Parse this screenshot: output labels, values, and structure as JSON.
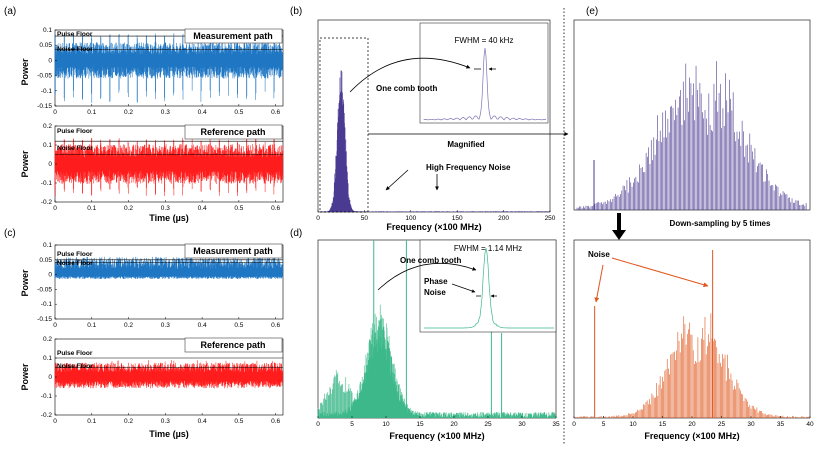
{
  "colors": {
    "blue": "#1f77c4",
    "red": "#ff1c1c",
    "purple": "#4b3a91",
    "green": "#3cb88a",
    "orange": "#e0561c"
  },
  "panels": {
    "a": {
      "label": "(a)",
      "measurement_label": "Measurement path",
      "reference_label": "Reference path",
      "pulse_floor": "Pulse Floor",
      "noise_floor": "Noise Floor",
      "ylabel": "Power",
      "xlabel": "Time (µs)"
    },
    "c": {
      "label": "(c)",
      "measurement_label": "Measurement path",
      "reference_label": "Reference path",
      "pulse_floor": "Pulse Floor",
      "noise_floor": "Noise Floor",
      "ylabel": "Power",
      "xlabel": "Time (µs)"
    },
    "b": {
      "label": "(b)",
      "xlabel": "Frequency (×100 MHz)",
      "ylabel": "",
      "fwhm": "FWHM = 40 kHz",
      "one_comb_tooth": "One comb tooth",
      "magnified": "Magnified",
      "high_freq_noise": "High Frequency Noise"
    },
    "d": {
      "label": "(d)",
      "xlabel": "Frequency (×100 MHz)",
      "fwhm": "FWHM = 1.14 MHz",
      "one_comb_tooth": "One comb tooth",
      "phase_noise_1": "Phase",
      "phase_noise_2": "Noise"
    },
    "e": {
      "label": "(e)",
      "downsampling": "Down-sampling by 5 times",
      "noise": "Noise",
      "xlabel": "Frequency (×100 MHz)"
    }
  },
  "chart_data": [
    {
      "id": "a-measurement",
      "type": "line",
      "series_name": "Measurement path",
      "xlabel": "Time (µs)",
      "ylabel": "Power",
      "xlim": [
        0,
        0.62
      ],
      "ylim": [
        -0.15,
        0.1
      ],
      "xticks": [
        0,
        0.1,
        0.2,
        0.3,
        0.4,
        0.5,
        0.6
      ],
      "yticks": [
        -0.15,
        -0.1,
        -0.05,
        0,
        0.05,
        0.1
      ],
      "xtick_labels": [
        "0",
        "0.1",
        "0.2",
        "0.3",
        "0.4",
        "0.5",
        "0.6"
      ],
      "ytick_labels": [
        "-0.15",
        "-0.1",
        "-0.05",
        "0",
        "0.05",
        "0.1"
      ],
      "pulse_floor": 0.08,
      "noise_floor": 0.035,
      "pulse_count": 25,
      "noise_band": [
        -0.04,
        0.04
      ],
      "pulse_range": [
        -0.14,
        0.09
      ]
    },
    {
      "id": "a-reference",
      "type": "line",
      "series_name": "Reference path",
      "xlabel": "Time (µs)",
      "ylabel": "Power",
      "xlim": [
        0,
        0.62
      ],
      "ylim": [
        -0.2,
        0.2
      ],
      "xticks": [
        0,
        0.1,
        0.2,
        0.3,
        0.4,
        0.5,
        0.6
      ],
      "yticks": [
        -0.2,
        -0.1,
        0,
        0.1,
        0.2
      ],
      "xtick_labels": [
        "0",
        "0.1",
        "0.2",
        "0.3",
        "0.4",
        "0.5",
        "0.6"
      ],
      "ytick_labels": [
        "-0.2",
        "-0.1",
        "0",
        "0.1",
        "0.2"
      ],
      "pulse_floor": 0.12,
      "noise_floor": 0.05,
      "pulse_count": 25,
      "noise_band": [
        -0.07,
        0.07
      ],
      "pulse_range": [
        -0.17,
        0.14
      ]
    },
    {
      "id": "c-measurement",
      "type": "line",
      "series_name": "Measurement path",
      "xlabel": "Time (µs)",
      "ylabel": "Power",
      "xlim": [
        0,
        0.62
      ],
      "ylim": [
        -0.15,
        0.1
      ],
      "xticks": [
        0,
        0.1,
        0.2,
        0.3,
        0.4,
        0.5,
        0.6
      ],
      "yticks": [
        -0.15,
        -0.1,
        -0.05,
        0,
        0.05,
        0.1
      ],
      "xtick_labels": [
        "0",
        "0.1",
        "0.2",
        "0.3",
        "0.4",
        "0.5",
        "0.6"
      ],
      "ytick_labels": [
        "-0.15",
        "-0.1",
        "-0.05",
        "0",
        "0.05",
        "0.1"
      ],
      "pulse_floor": 0.05,
      "noise_floor": 0.04,
      "pulse_count": 0,
      "noise_band": [
        -0.01,
        0.04
      ],
      "pulse_range": [
        -0.01,
        0.05
      ]
    },
    {
      "id": "c-reference",
      "type": "line",
      "series_name": "Reference path",
      "xlabel": "Time (µs)",
      "ylabel": "Power",
      "xlim": [
        0,
        0.62
      ],
      "ylim": [
        -0.2,
        0.2
      ],
      "xticks": [
        0,
        0.1,
        0.2,
        0.3,
        0.4,
        0.5,
        0.6
      ],
      "yticks": [
        -0.2,
        -0.1,
        0,
        0.1,
        0.2
      ],
      "xtick_labels": [
        "0",
        "0.1",
        "0.2",
        "0.3",
        "0.4",
        "0.5",
        "0.6"
      ],
      "ytick_labels": [
        "-0.2",
        "-0.1",
        "0",
        "0.1",
        "0.2"
      ],
      "pulse_floor": 0.1,
      "noise_floor": 0.05,
      "pulse_count": 0,
      "noise_band": [
        -0.04,
        0.05
      ],
      "pulse_range": [
        -0.05,
        0.09
      ]
    },
    {
      "id": "b-spectrum",
      "type": "bar",
      "title": "",
      "xlabel": "Frequency (×100 MHz)",
      "xlim": [
        0,
        250
      ],
      "xticks": [
        0,
        50,
        100,
        150,
        200,
        250
      ],
      "xtick_labels": [
        "0",
        "50",
        "100",
        "150",
        "200",
        "250"
      ],
      "comb_center": 25,
      "comb_range": [
        15,
        35
      ],
      "peak": 1.0,
      "high_freq_noise_markers": [
        125,
        180
      ],
      "magnified_region": [
        0,
        50
      ]
    },
    {
      "id": "b-inset",
      "type": "line",
      "title": "FWHM = 40 kHz",
      "note": "magnified comb tooth"
    },
    {
      "id": "d-spectrum",
      "type": "bar",
      "xlabel": "Frequency (×100 MHz)",
      "xlim": [
        0,
        35
      ],
      "xticks": [
        0,
        5,
        10,
        15,
        20,
        25,
        30,
        35
      ],
      "xtick_labels": [
        "0",
        "5",
        "10",
        "15",
        "20",
        "25",
        "30",
        "35"
      ],
      "comb_center": 9,
      "comb_range": [
        1,
        15
      ],
      "spurs": [
        8.2,
        13,
        25.5,
        27
      ]
    },
    {
      "id": "d-inset",
      "type": "line",
      "title": "FWHM = 1.14 MHz",
      "annotation": "Phase Noise"
    },
    {
      "id": "e-top",
      "type": "bar",
      "note": "magnified view of (b), no axis labels",
      "comb_range": [
        0,
        50
      ]
    },
    {
      "id": "e-bottom",
      "type": "bar",
      "xlabel": "Frequency (×100 MHz)",
      "xlim": [
        0,
        40
      ],
      "xticks": [
        0,
        5,
        10,
        15,
        20,
        25,
        30,
        35,
        40
      ],
      "xtick_labels": [
        "0",
        "5",
        "10",
        "15",
        "20",
        "25",
        "30",
        "35",
        "40"
      ],
      "comb_center": 21,
      "comb_range": [
        8,
        35
      ],
      "noise_spurs": [
        3.5,
        23.5
      ]
    }
  ]
}
